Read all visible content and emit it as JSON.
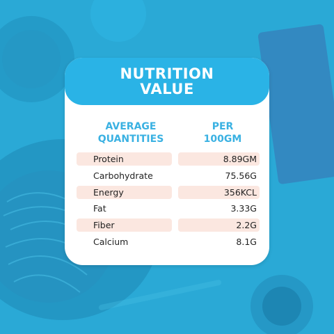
{
  "card": {
    "title_line1": "NUTRITION",
    "title_line2": "VALUE",
    "col_header_left_line1": "AVERAGE",
    "col_header_left_line2": "QUANTITIES",
    "col_header_right_line1": "PER",
    "col_header_right_line2": "100GM",
    "rows": [
      {
        "name": "Protein",
        "value": "8.89GM"
      },
      {
        "name": "Carbohydrate",
        "value": "75.56G"
      },
      {
        "name": "Energy",
        "value": "356KCL"
      },
      {
        "name": "Fat",
        "value": "3.33G"
      },
      {
        "name": "Fiber",
        "value": "2.2G"
      },
      {
        "name": "Calcium",
        "value": "8.1G"
      }
    ]
  },
  "colors": {
    "background": "#2aa9d6",
    "pill": "#2ab3e6",
    "header_text": "#3ab1e2",
    "row_shade": "#fbe7e0"
  }
}
